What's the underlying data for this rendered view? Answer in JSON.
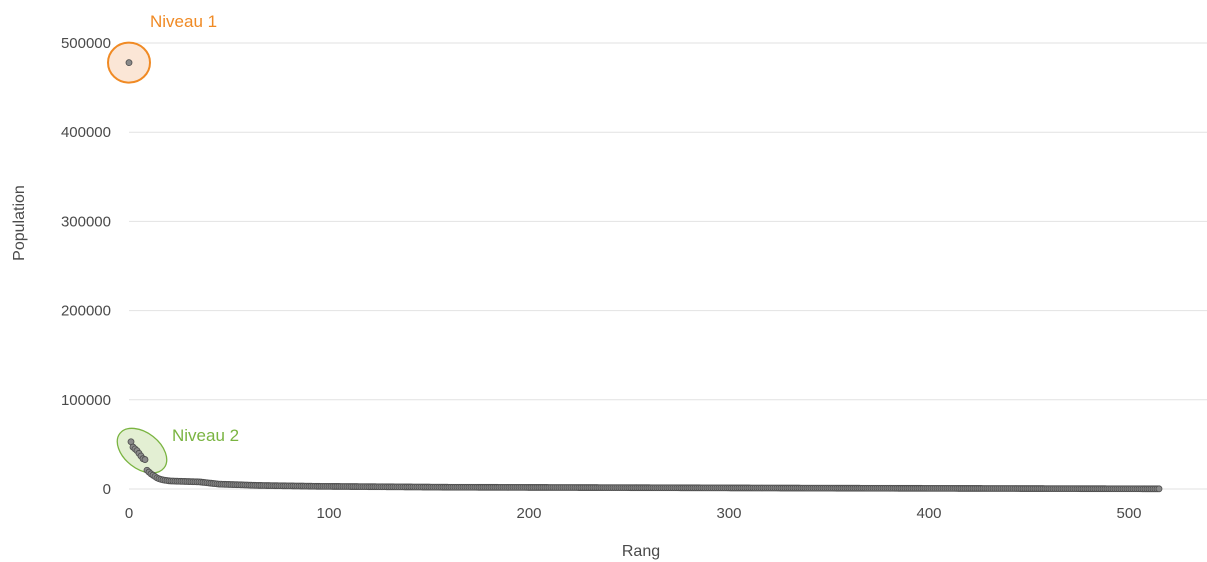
{
  "chart_data": {
    "type": "scatter",
    "xlabel": "Rang",
    "ylabel": "Population",
    "xlim": [
      0,
      515
    ],
    "ylim": [
      0,
      500000
    ],
    "x_ticks": [
      "0",
      "100",
      "200",
      "300",
      "400",
      "500"
    ],
    "y_ticks": [
      "0",
      "100000",
      "200000",
      "300000",
      "400000",
      "500000"
    ],
    "grid": "horizontal",
    "point_color": "#8a8a8a",
    "series": [
      {
        "x": [
          0,
          1,
          2,
          3,
          4,
          5,
          6,
          7,
          8,
          9,
          10,
          11,
          12,
          13,
          14,
          15,
          16,
          17,
          18,
          19,
          20
        ],
        "y": [
          478000,
          53000,
          47000,
          45000,
          43000,
          40000,
          37000,
          34000,
          33000,
          21000,
          19000,
          17000,
          15500,
          14000,
          12500,
          11500,
          10800,
          10200,
          9800,
          9500,
          9200
        ]
      }
    ],
    "tail": {
      "start_rank": 21,
      "end_rank": 515,
      "anchors": [
        [
          21,
          9000
        ],
        [
          35,
          8000
        ],
        [
          45,
          5500
        ],
        [
          65,
          4000
        ],
        [
          95,
          3000
        ],
        [
          160,
          2000
        ],
        [
          340,
          1000
        ],
        [
          515,
          200
        ]
      ]
    },
    "annotations": [
      {
        "text": "Niveau 1",
        "x": 0,
        "y": 478000,
        "color": "#f08a24",
        "fill": "#fbe6d6"
      },
      {
        "text": "Niveau 2",
        "x": 4,
        "y": 43000,
        "color": "#7ab441",
        "fill": "#e3efd3"
      }
    ]
  }
}
